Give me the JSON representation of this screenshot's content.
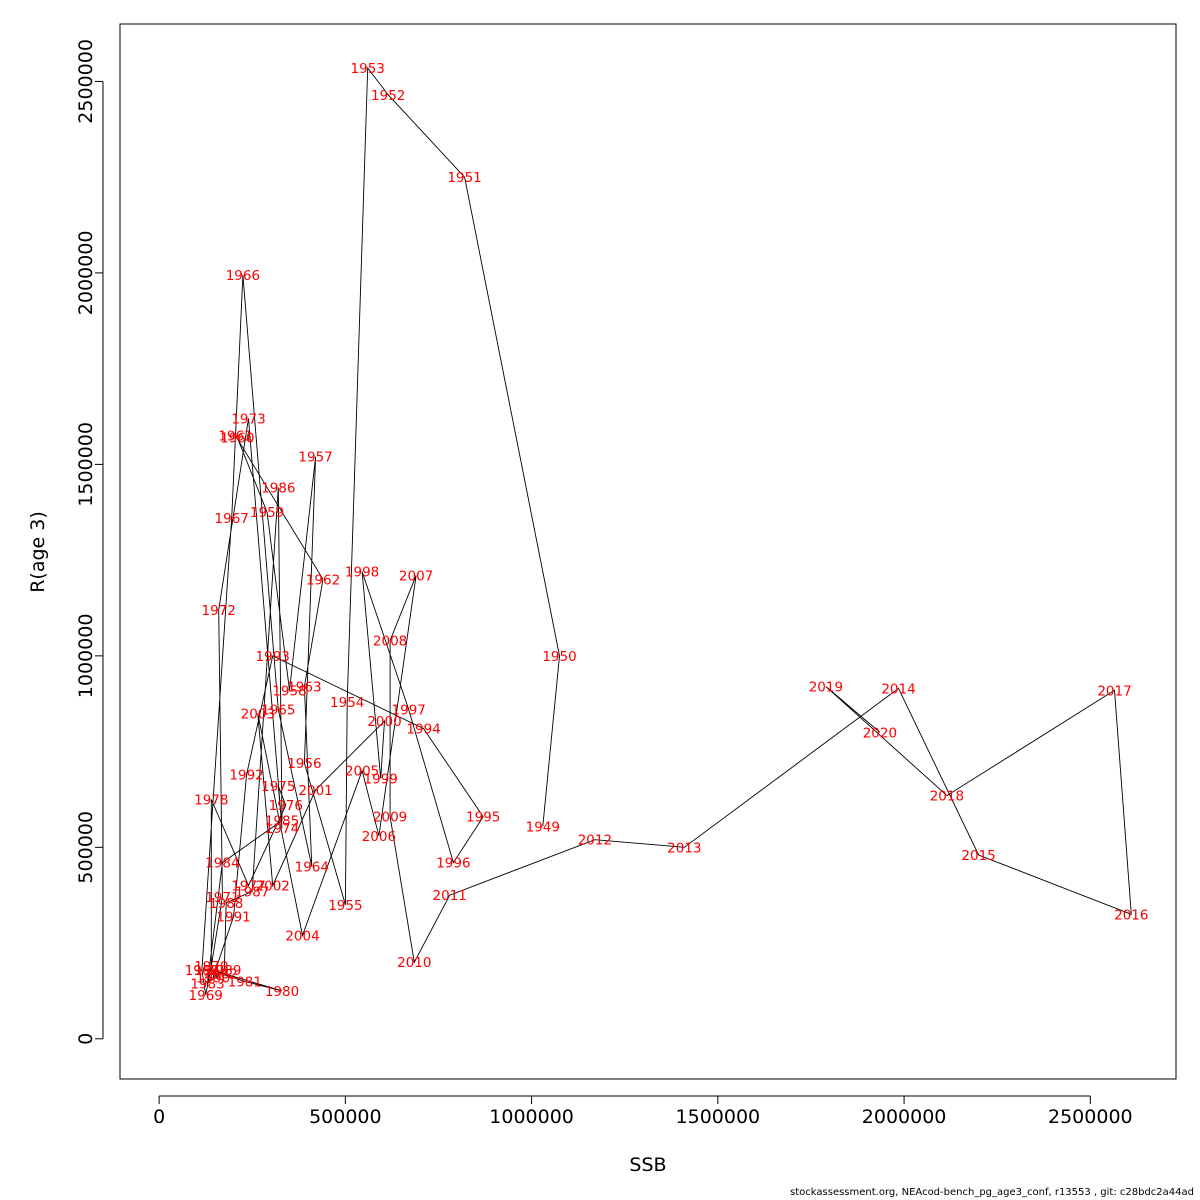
{
  "chart_data": {
    "type": "line",
    "title": "",
    "xlabel": "SSB",
    "ylabel": "R(age 3)",
    "xlim": [
      -105000,
      2730000
    ],
    "ylim": [
      -105000,
      2650000
    ],
    "x_ticks": [
      0,
      500000,
      1000000,
      1500000,
      2000000,
      2500000
    ],
    "y_ticks": [
      0,
      500000,
      1000000,
      1500000,
      2000000,
      2500000
    ],
    "grid": false,
    "line_color": "#000000",
    "label_color": "#ff0000",
    "points": [
      {
        "label": "1949",
        "x": 1030000,
        "y": 555000
      },
      {
        "label": "1950",
        "x": 1075000,
        "y": 1000000
      },
      {
        "label": "1951",
        "x": 820000,
        "y": 2250000
      },
      {
        "label": "1952",
        "x": 615000,
        "y": 2465000
      },
      {
        "label": "1953",
        "x": 560000,
        "y": 2535000
      },
      {
        "label": "1954",
        "x": 505000,
        "y": 880000
      },
      {
        "label": "1955",
        "x": 500000,
        "y": 350000
      },
      {
        "label": "1956",
        "x": 390000,
        "y": 720000
      },
      {
        "label": "1957",
        "x": 420000,
        "y": 1520000
      },
      {
        "label": "1958",
        "x": 350000,
        "y": 910000
      },
      {
        "label": "1959",
        "x": 290000,
        "y": 1375000
      },
      {
        "label": "1960",
        "x": 210000,
        "y": 1570000
      },
      {
        "label": "1961",
        "x": 205000,
        "y": 1575000
      },
      {
        "label": "1962",
        "x": 440000,
        "y": 1200000
      },
      {
        "label": "1963",
        "x": 390000,
        "y": 920000
      },
      {
        "label": "1964",
        "x": 410000,
        "y": 450000
      },
      {
        "label": "1965",
        "x": 320000,
        "y": 860000
      },
      {
        "label": "1966",
        "x": 225000,
        "y": 1995000
      },
      {
        "label": "1967",
        "x": 195000,
        "y": 1360000
      },
      {
        "label": "1968",
        "x": 115000,
        "y": 180000
      },
      {
        "label": "1969",
        "x": 125000,
        "y": 115000
      },
      {
        "label": "1970",
        "x": 140000,
        "y": 190000
      },
      {
        "label": "1971",
        "x": 170000,
        "y": 370000
      },
      {
        "label": "1972",
        "x": 160000,
        "y": 1120000
      },
      {
        "label": "1973",
        "x": 240000,
        "y": 1620000
      },
      {
        "label": "1974",
        "x": 330000,
        "y": 550000
      },
      {
        "label": "1975",
        "x": 320000,
        "y": 660000
      },
      {
        "label": "1976",
        "x": 340000,
        "y": 610000
      },
      {
        "label": "1977",
        "x": 240000,
        "y": 400000
      },
      {
        "label": "1978",
        "x": 140000,
        "y": 625000
      },
      {
        "label": "1979",
        "x": 140000,
        "y": 180000
      },
      {
        "label": "1980",
        "x": 330000,
        "y": 125000
      },
      {
        "label": "1981",
        "x": 230000,
        "y": 150000
      },
      {
        "label": "1982",
        "x": 165000,
        "y": 170000
      },
      {
        "label": "1983",
        "x": 130000,
        "y": 145000
      },
      {
        "label": "1984",
        "x": 170000,
        "y": 460000
      },
      {
        "label": "1985",
        "x": 330000,
        "y": 570000
      },
      {
        "label": "1986",
        "x": 320000,
        "y": 1440000
      },
      {
        "label": "1987",
        "x": 250000,
        "y": 385000
      },
      {
        "label": "1988",
        "x": 180000,
        "y": 355000
      },
      {
        "label": "1989",
        "x": 175000,
        "y": 180000
      },
      {
        "label": "1990",
        "x": 145000,
        "y": 160000
      },
      {
        "label": "1991",
        "x": 200000,
        "y": 320000
      },
      {
        "label": "1992",
        "x": 235000,
        "y": 690000
      },
      {
        "label": "1993",
        "x": 305000,
        "y": 1000000
      },
      {
        "label": "1994",
        "x": 710000,
        "y": 810000
      },
      {
        "label": "1995",
        "x": 870000,
        "y": 580000
      },
      {
        "label": "1996",
        "x": 790000,
        "y": 460000
      },
      {
        "label": "1997",
        "x": 670000,
        "y": 860000
      },
      {
        "label": "1998",
        "x": 545000,
        "y": 1220000
      },
      {
        "label": "1999",
        "x": 595000,
        "y": 680000
      },
      {
        "label": "2000",
        "x": 605000,
        "y": 830000
      },
      {
        "label": "2001",
        "x": 420000,
        "y": 650000
      },
      {
        "label": "2002",
        "x": 305000,
        "y": 400000
      },
      {
        "label": "2003",
        "x": 265000,
        "y": 850000
      },
      {
        "label": "2004",
        "x": 385000,
        "y": 270000
      },
      {
        "label": "2005",
        "x": 545000,
        "y": 700000
      },
      {
        "label": "2006",
        "x": 590000,
        "y": 530000
      },
      {
        "label": "2007",
        "x": 690000,
        "y": 1210000
      },
      {
        "label": "2008",
        "x": 620000,
        "y": 1040000
      },
      {
        "label": "2009",
        "x": 620000,
        "y": 580000
      },
      {
        "label": "2010",
        "x": 685000,
        "y": 200000
      },
      {
        "label": "2011",
        "x": 780000,
        "y": 375000
      },
      {
        "label": "2012",
        "x": 1170000,
        "y": 520000
      },
      {
        "label": "2013",
        "x": 1410000,
        "y": 500000
      },
      {
        "label": "2014",
        "x": 1985000,
        "y": 915000
      },
      {
        "label": "2015",
        "x": 2200000,
        "y": 480000
      },
      {
        "label": "2016",
        "x": 2610000,
        "y": 325000
      },
      {
        "label": "2017",
        "x": 2565000,
        "y": 910000
      },
      {
        "label": "2018",
        "x": 2115000,
        "y": 635000
      },
      {
        "label": "2019",
        "x": 1790000,
        "y": 920000
      },
      {
        "label": "2020",
        "x": 1935000,
        "y": 800000
      }
    ]
  },
  "footer_text": "stockassessment.org, NEAcod-bench_pg_age3_conf, r13553 , git: c28bdc2a44ad"
}
